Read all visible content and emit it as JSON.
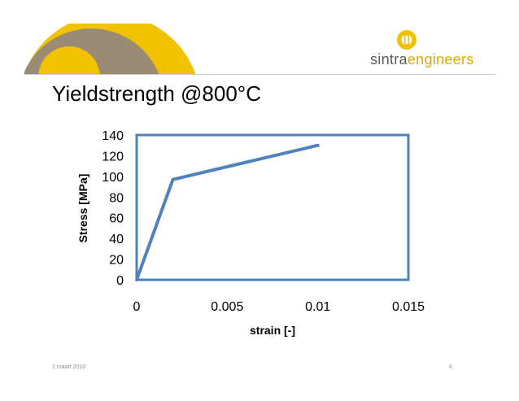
{
  "slide": {
    "title": "Yieldstrength @800°C",
    "footer_date": "1 maart 2010",
    "page_number": "6"
  },
  "brand": {
    "name_part1": "sintra",
    "name_part2": "engineers",
    "colors": {
      "yellow": "#f2c200",
      "taupe": "#9b8a74",
      "gray": "#5a5a5a"
    }
  },
  "chart_data": {
    "type": "line",
    "x": [
      0,
      0.002,
      0.01
    ],
    "series": [
      {
        "values": [
          0,
          97,
          130
        ],
        "color": "#4f81bd"
      }
    ],
    "xlabel": "strain [-]",
    "ylabel": "Stress [MPa]",
    "xlim": [
      0,
      0.015
    ],
    "ylim": [
      0,
      140
    ],
    "x_ticks": [
      0,
      0.005,
      0.01,
      0.015
    ],
    "x_tick_labels": [
      "0",
      "0.005",
      "0.01",
      "0.015"
    ],
    "y_ticks": [
      0,
      20,
      40,
      60,
      80,
      100,
      120,
      140
    ],
    "y_tick_labels": [
      "0",
      "20",
      "40",
      "60",
      "80",
      "100",
      "120",
      "140"
    ],
    "grid": false,
    "legend": "none",
    "frame_color": "#4f81bd"
  }
}
